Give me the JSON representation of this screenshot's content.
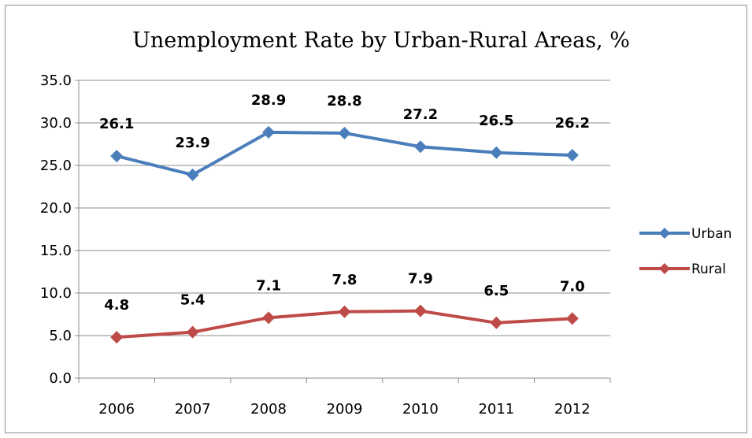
{
  "chart_data": {
    "type": "line",
    "title": "Unemployment Rate by Urban-Rural Areas, %",
    "xlabel": "",
    "ylabel": "",
    "categories": [
      "2006",
      "2007",
      "2008",
      "2009",
      "2010",
      "2011",
      "2012"
    ],
    "ylim": [
      0,
      35
    ],
    "y_ticks": [
      "0.0",
      "5.0",
      "10.0",
      "15.0",
      "20.0",
      "25.0",
      "30.0",
      "35.0"
    ],
    "grid": true,
    "legend_position": "right",
    "series": [
      {
        "name": "Urban",
        "color": "#4a7ebb",
        "marker": "diamond",
        "values": [
          26.1,
          23.9,
          28.9,
          28.8,
          27.2,
          26.5,
          26.2
        ],
        "labels": [
          "26.1",
          "23.9",
          "28.9",
          "28.8",
          "27.2",
          "26.5",
          "26.2"
        ]
      },
      {
        "name": "Rural",
        "color": "#be4b48",
        "marker": "diamond",
        "values": [
          4.8,
          5.4,
          7.1,
          7.8,
          7.9,
          6.5,
          7.0
        ],
        "labels": [
          "4.8",
          "5.4",
          "7.1",
          "7.8",
          "7.9",
          "6.5",
          "7.0"
        ]
      }
    ]
  }
}
